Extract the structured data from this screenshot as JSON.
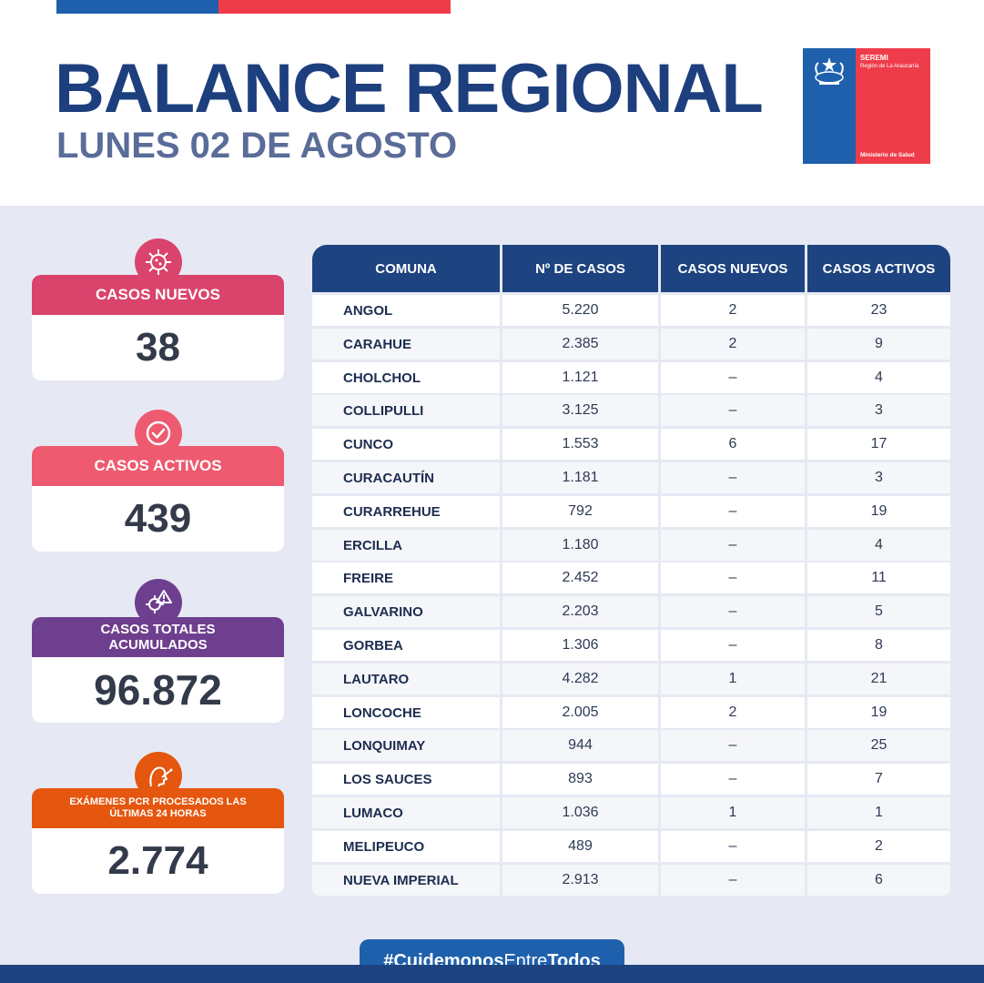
{
  "header": {
    "title": "BALANCE REGIONAL",
    "subtitle": "LUNES 02 DE AGOSTO"
  },
  "logo": {
    "seremi": "SEREMI",
    "region": "Región de La Araucanía",
    "ministry": "Ministerio de Salud"
  },
  "stats": [
    {
      "label": "CASOS NUEVOS",
      "value": "38",
      "color": "#d9436c",
      "icon": "virus-icon"
    },
    {
      "label": "CASOS ACTIVOS",
      "value": "439",
      "color": "#ee5a6f",
      "icon": "check-circle-icon"
    },
    {
      "label": "CASOS TOTALES ACUMULADOS",
      "value": "96.872",
      "color": "#6e3f8e",
      "icon": "virus-warning-icon"
    },
    {
      "label": "EXÁMENES PCR PROCESADOS LAS ÚLTIMAS 24 HORAS",
      "value": "2.774",
      "color": "#e5560f",
      "icon": "pcr-swab-icon"
    }
  ],
  "table": {
    "headers": [
      "COMUNA",
      "Nº DE CASOS",
      "CASOS NUEVOS",
      "CASOS ACTIVOS"
    ],
    "rows": [
      [
        "ANGOL",
        "5.220",
        "2",
        "23"
      ],
      [
        "CARAHUE",
        "2.385",
        "2",
        "9"
      ],
      [
        "CHOLCHOL",
        "1.121",
        "–",
        "4"
      ],
      [
        "COLLIPULLI",
        "3.125",
        "–",
        "3"
      ],
      [
        "CUNCO",
        "1.553",
        "6",
        "17"
      ],
      [
        "CURACAUTÍN",
        "1.181",
        "–",
        "3"
      ],
      [
        "CURARREHUE",
        "792",
        "–",
        "19"
      ],
      [
        "ERCILLA",
        "1.180",
        "–",
        "4"
      ],
      [
        "FREIRE",
        "2.452",
        "–",
        "11"
      ],
      [
        "GALVARINO",
        "2.203",
        "–",
        "5"
      ],
      [
        "GORBEA",
        "1.306",
        "–",
        "8"
      ],
      [
        "LAUTARO",
        "4.282",
        "1",
        "21"
      ],
      [
        "LONCOCHE",
        "2.005",
        "2",
        "19"
      ],
      [
        "LONQUIMAY",
        "944",
        "–",
        "25"
      ],
      [
        "LOS SAUCES",
        "893",
        "–",
        "7"
      ],
      [
        "LUMACO",
        "1.036",
        "1",
        "1"
      ],
      [
        "MELIPEUCO",
        "489",
        "–",
        "2"
      ],
      [
        "NUEVA IMPERIAL",
        "2.913",
        "–",
        "6"
      ]
    ]
  },
  "footer": {
    "hashtag_prefix": "#Cuidemonos",
    "hashtag_mid": "Entre",
    "hashtag_suffix": "Todos"
  },
  "colors": {
    "navy": "#1d4380",
    "blue": "#1f60ad",
    "red": "#ef3c4a",
    "panel": "#e6e9f3"
  }
}
